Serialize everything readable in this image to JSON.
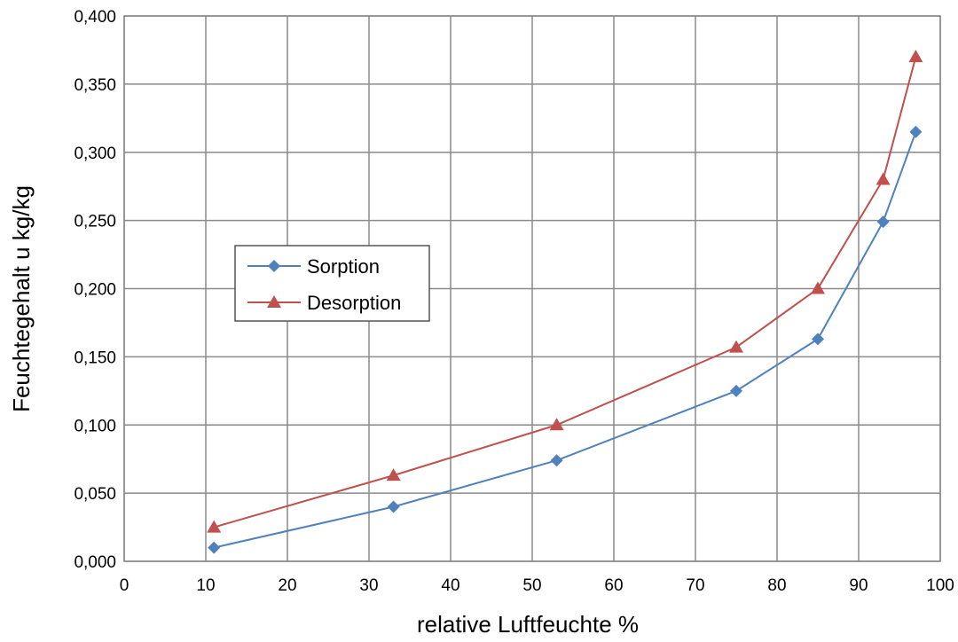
{
  "chart_data": {
    "type": "line",
    "title": "",
    "xlabel": "relative Luftfeuchte %",
    "ylabel": "Feuchtegehalt u kg/kg",
    "xlim": [
      0,
      100
    ],
    "ylim": [
      0,
      0.4
    ],
    "x_ticks": [
      "0",
      "10",
      "20",
      "30",
      "40",
      "50",
      "60",
      "70",
      "80",
      "90",
      "100"
    ],
    "y_ticks": [
      "0,000",
      "0,050",
      "0,100",
      "0,150",
      "0,200",
      "0,250",
      "0,300",
      "0,350",
      "0,400"
    ],
    "grid": true,
    "legend_position": "center-left",
    "series": [
      {
        "name": "Sorption",
        "marker": "diamond",
        "color": "#4F81BD",
        "x": [
          11,
          33,
          53,
          75,
          85,
          93,
          97
        ],
        "y": [
          0.01,
          0.04,
          0.074,
          0.125,
          0.163,
          0.249,
          0.315
        ]
      },
      {
        "name": "Desorption",
        "marker": "triangle",
        "color": "#C0504D",
        "x": [
          11,
          33,
          53,
          75,
          85,
          93,
          97
        ],
        "y": [
          0.025,
          0.063,
          0.1,
          0.157,
          0.2,
          0.28,
          0.37
        ]
      }
    ]
  }
}
